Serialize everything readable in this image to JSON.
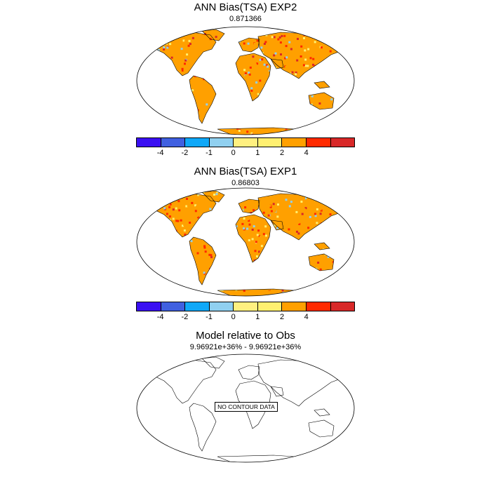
{
  "panels": [
    {
      "title": "ANN Bias(TSA) EXP2",
      "subtitle": "0.871366",
      "has_data": true
    },
    {
      "title": "ANN Bias(TSA) EXP1",
      "subtitle": "0.86803",
      "has_data": true
    },
    {
      "title": "Model relative to Obs",
      "subtitle": "9.96921e+36% - 9.96921e+36%",
      "has_data": false,
      "message": "NO CONTOUR DATA"
    }
  ],
  "colorbar": {
    "colors": [
      "#3a10f2",
      "#4060e0",
      "#10a8f8",
      "#90d0f0",
      "#fff080",
      "#fff070",
      "#ffa000",
      "#ff2a00",
      "#d82828"
    ],
    "labels": [
      "-4",
      "-2",
      "-1",
      "0",
      "1",
      "2",
      "4"
    ]
  }
}
